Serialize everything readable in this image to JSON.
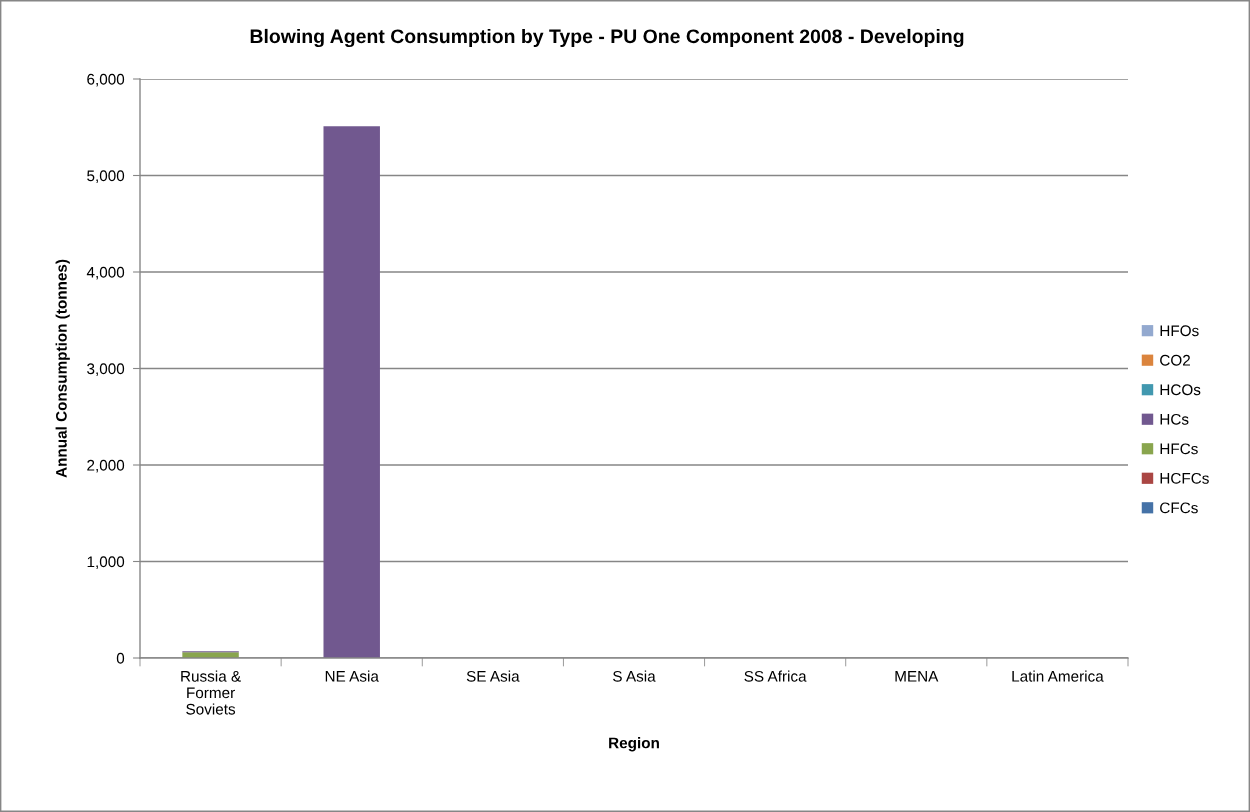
{
  "chart_data": {
    "type": "bar",
    "title": "Blowing Agent Consumption by Type - PU One Component 2008 - Developing",
    "xlabel": "Region",
    "ylabel": "Annual Consumption (tonnes)",
    "categories": [
      "Russia & Former Soviets",
      "NE Asia",
      "SE Asia",
      "S Asia",
      "SS Africa",
      "MENA",
      "Latin America"
    ],
    "stacked": true,
    "series": [
      {
        "name": "CFCs",
        "color": "#4572a7",
        "values": [
          0,
          0,
          0,
          0,
          0,
          0,
          0
        ]
      },
      {
        "name": "HCFCs",
        "color": "#aa4643",
        "values": [
          0,
          0,
          0,
          0,
          0,
          0,
          0
        ]
      },
      {
        "name": "HFCs",
        "color": "#89a54e",
        "values": [
          60,
          0,
          0,
          0,
          0,
          0,
          0
        ]
      },
      {
        "name": "HCs",
        "color": "#71588f",
        "values": [
          10,
          5510,
          0,
          0,
          0,
          0,
          0
        ]
      },
      {
        "name": "HCOs",
        "color": "#4198af",
        "values": [
          0,
          0,
          0,
          0,
          0,
          0,
          0
        ]
      },
      {
        "name": "CO2",
        "color": "#db843d",
        "values": [
          0,
          0,
          0,
          0,
          0,
          0,
          0
        ]
      },
      {
        "name": "HFOs",
        "color": "#93a9cf",
        "values": [
          0,
          0,
          0,
          0,
          0,
          0,
          0
        ]
      }
    ],
    "ylim": [
      0,
      6000
    ],
    "yticks": [
      0,
      {
        "value": 1000,
        "label": "1,000"
      },
      {
        "value": 2000,
        "label": "2,000"
      },
      {
        "value": 3000,
        "label": "3,000"
      },
      {
        "value": 4000,
        "label": "4,000"
      },
      {
        "value": 5000,
        "label": "5,000"
      },
      {
        "value": 6000,
        "label": "6,000"
      }
    ],
    "grid": "y",
    "legend": "right"
  }
}
